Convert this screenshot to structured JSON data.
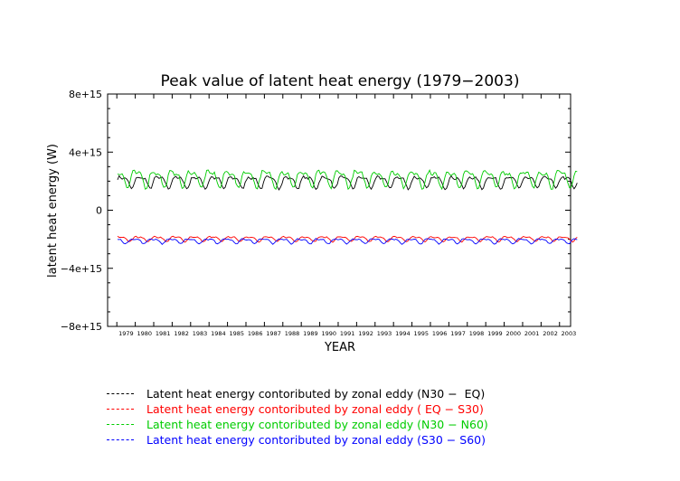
{
  "chart_data": {
    "type": "line",
    "title": "Peak value of latent heat energy (1979−2003)",
    "xlabel": "YEAR",
    "ylabel": "latent heat energy (W)",
    "ylim": [
      -8000000000000000.0,
      8000000000000000.0
    ],
    "yticks": [
      -8000000000000000.0,
      -4000000000000000.0,
      0,
      4000000000000000.0,
      8000000000000000.0
    ],
    "ytick_labels": [
      "−8e+15",
      "−4e+15",
      "0",
      "4e+15",
      "8e+15"
    ],
    "xlim": [
      1978.5,
      2003.6
    ],
    "xtick_labels": [
      "1979",
      "1980",
      "1981",
      "1982",
      "1983",
      "1984",
      "1985",
      "1986",
      "1987",
      "1988",
      "1989",
      "1990",
      "1991",
      "1992",
      "1993",
      "1994",
      "1995",
      "1996",
      "1997",
      "1998",
      "1999",
      "2000",
      "2001",
      "2002",
      "2003"
    ],
    "sampling": "monthly, 1979–2003",
    "legend_position": "bottom",
    "series": [
      {
        "name": "Latent heat energy contoributed by zonal eddy (N30 −  EQ)",
        "color": "#000000",
        "mean": 2000000000000000.0,
        "amplitude": 350000000000000.0
      },
      {
        "name": "Latent heat energy contoributed by zonal eddy ( EQ − S30)",
        "color": "#ff0000",
        "mean": -1950000000000000.0,
        "amplitude": 150000000000000.0
      },
      {
        "name": "Latent heat energy contoributed by zonal eddy (N30 − N60)",
        "color": "#00cc00",
        "mean": 2250000000000000.0,
        "amplitude": 500000000000000.0
      },
      {
        "name": "Latent heat energy contoributed by zonal eddy (S30 − S60)",
        "color": "#0000ff",
        "mean": -2100000000000000.0,
        "amplitude": 150000000000000.0
      }
    ]
  }
}
